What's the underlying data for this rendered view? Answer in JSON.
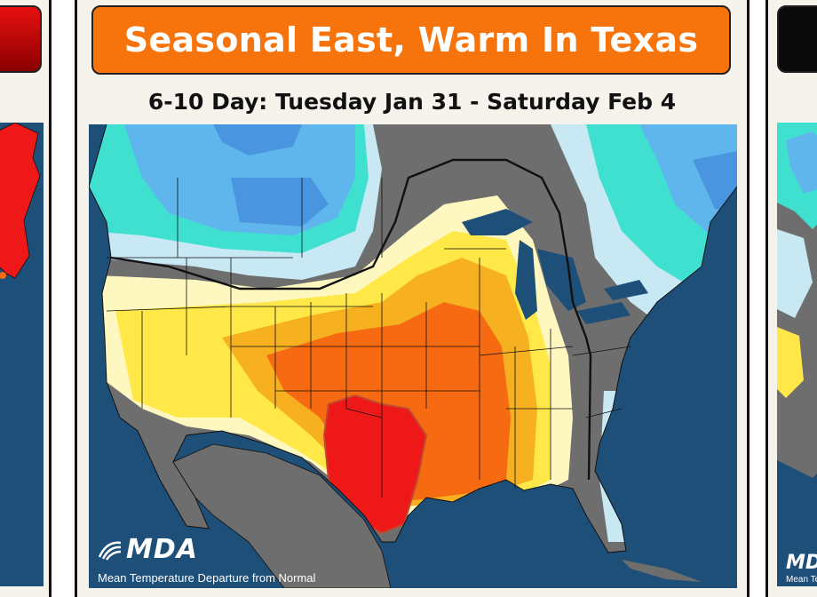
{
  "main_card": {
    "headline": "Seasonal East, Warm In Texas",
    "period": "6-10 Day: Tuesday Jan 31 - Saturday Feb 4",
    "logo_text": "MDA",
    "map_caption": "Mean Temperature Departure from Normal"
  },
  "right_card": {
    "logo_text": "MDA",
    "map_caption": "Mean Temperature Departure from Normal"
  },
  "colors": {
    "banner_orange": "#f7740c",
    "ocean": "#1d4f78",
    "much_below": "#4a95e0",
    "below": "#5fb6ec",
    "slightly_below": "#3fe0d0",
    "near_below": "#c8e8f4",
    "normal": "#6e6e6e",
    "near_above": "#fff7c0",
    "slightly_above": "#ffe848",
    "above": "#f7b020",
    "much_above": "#f66a12",
    "extreme_above": "#ee1818"
  }
}
